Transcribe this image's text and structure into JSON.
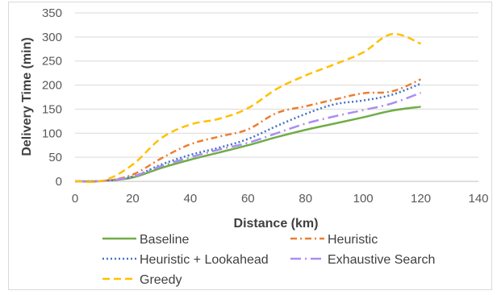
{
  "chart_data": {
    "type": "line",
    "xlabel": "Distance (km)",
    "ylabel": "Delivery Time (min)",
    "xlim": [
      0,
      140
    ],
    "ylim": [
      0,
      350
    ],
    "xticks": [
      0,
      20,
      40,
      60,
      80,
      100,
      120,
      140
    ],
    "yticks": [
      0,
      50,
      100,
      150,
      200,
      250,
      300,
      350
    ],
    "grid": "horizontal",
    "legend_position": "bottom",
    "series": [
      {
        "name": "Baseline",
        "color": "#70ad47",
        "dash": "solid",
        "points": [
          [
            0,
            0
          ],
          [
            10,
            1
          ],
          [
            20,
            8
          ],
          [
            30,
            28
          ],
          [
            40,
            45
          ],
          [
            50,
            60
          ],
          [
            60,
            75
          ],
          [
            70,
            92
          ],
          [
            80,
            107
          ],
          [
            90,
            120
          ],
          [
            100,
            133
          ],
          [
            110,
            147
          ],
          [
            120,
            155
          ]
        ]
      },
      {
        "name": "Heuristic",
        "color": "#ed7d31",
        "dash": "dashdot",
        "points": [
          [
            0,
            0
          ],
          [
            10,
            1
          ],
          [
            20,
            14
          ],
          [
            30,
            48
          ],
          [
            40,
            77
          ],
          [
            50,
            93
          ],
          [
            60,
            108
          ],
          [
            70,
            142
          ],
          [
            80,
            156
          ],
          [
            90,
            170
          ],
          [
            100,
            183
          ],
          [
            110,
            187
          ],
          [
            120,
            212
          ]
        ]
      },
      {
        "name": "Heuristic + Lookahead",
        "color": "#4472c4",
        "dash": "dot",
        "points": [
          [
            0,
            0
          ],
          [
            10,
            1
          ],
          [
            20,
            10
          ],
          [
            30,
            35
          ],
          [
            40,
            55
          ],
          [
            50,
            70
          ],
          [
            60,
            88
          ],
          [
            70,
            115
          ],
          [
            80,
            140
          ],
          [
            90,
            160
          ],
          [
            100,
            168
          ],
          [
            110,
            180
          ],
          [
            120,
            203
          ]
        ]
      },
      {
        "name": "Exhaustive Search",
        "color": "#a98ef2",
        "dash": "longdashdot",
        "points": [
          [
            0,
            0
          ],
          [
            10,
            1
          ],
          [
            20,
            10
          ],
          [
            30,
            32
          ],
          [
            40,
            50
          ],
          [
            50,
            66
          ],
          [
            60,
            80
          ],
          [
            70,
            100
          ],
          [
            80,
            120
          ],
          [
            90,
            135
          ],
          [
            100,
            148
          ],
          [
            110,
            162
          ],
          [
            120,
            184
          ]
        ]
      },
      {
        "name": "Greedy",
        "color": "#ffc000",
        "dash": "dash",
        "points": [
          [
            0,
            0
          ],
          [
            10,
            2
          ],
          [
            20,
            35
          ],
          [
            30,
            90
          ],
          [
            40,
            118
          ],
          [
            50,
            130
          ],
          [
            60,
            152
          ],
          [
            70,
            192
          ],
          [
            80,
            220
          ],
          [
            90,
            243
          ],
          [
            100,
            268
          ],
          [
            110,
            306
          ],
          [
            120,
            286
          ]
        ]
      }
    ]
  }
}
